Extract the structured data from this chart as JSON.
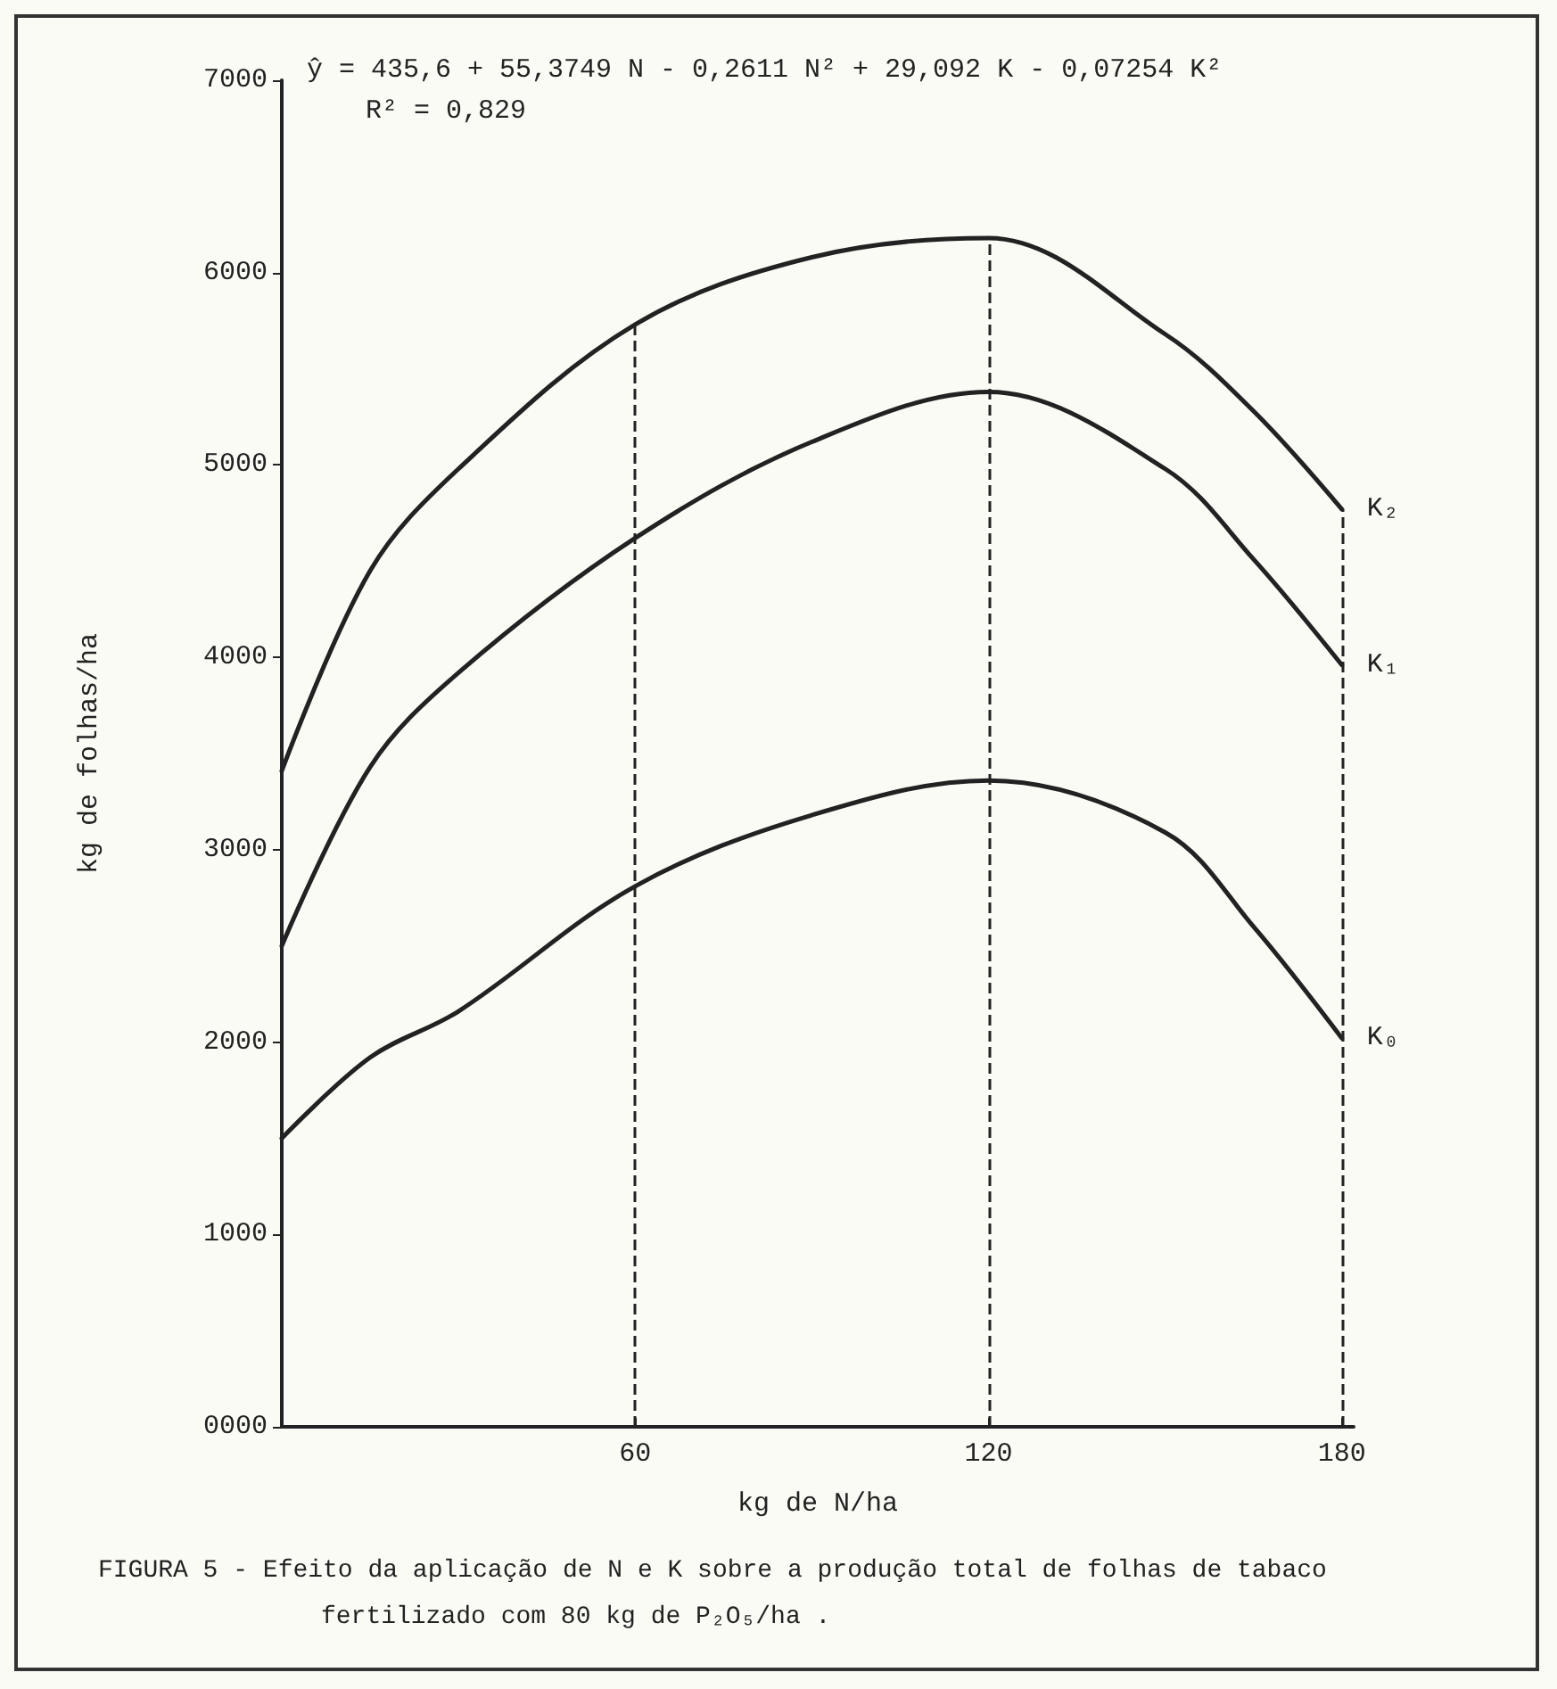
{
  "chart_data": {
    "type": "line",
    "xlabel": "kg de N/ha",
    "ylabel": "kg de folhas/ha",
    "x": [
      0,
      15,
      30,
      60,
      90,
      120,
      150,
      165,
      180
    ],
    "series": [
      {
        "name": "K₂",
        "color": "#222222",
        "values": [
          3410,
          4450,
          4980,
          5730,
          6080,
          6180,
          5680,
          5280,
          4770
        ]
      },
      {
        "name": "K₁",
        "color": "#222222",
        "values": [
          2500,
          3430,
          3920,
          4620,
          5120,
          5380,
          4980,
          4510,
          3960
        ]
      },
      {
        "name": "K₀",
        "color": "#222222",
        "values": [
          1500,
          1920,
          2160,
          2810,
          3180,
          3360,
          3090,
          2600,
          2020
        ]
      }
    ],
    "xlim": [
      0,
      182
    ],
    "xticks": [
      60,
      120,
      180
    ],
    "ylim": [
      0,
      7000
    ],
    "yticks": [
      {
        "value": 0,
        "label": "0000"
      },
      1000,
      2000,
      3000,
      4000,
      5000,
      6000,
      7000
    ],
    "ref_lines": [
      {
        "axis": "x",
        "value": 60,
        "line_style": "dashed"
      },
      {
        "axis": "x",
        "value": 120,
        "line_style": "dashed"
      },
      {
        "axis": "x",
        "value": 180,
        "line_style": "dashed"
      }
    ],
    "annotations": [
      "ŷ = 435,6 + 55,3749 N - 0,2611 N² + 29,092 K - 0,07254 K²",
      "R² = 0,829",
      "FIGURA 5 - Efeito da aplicação de N e K sobre a produção total de folhas de tabaco fertilizado com 80 kg de P₂O₅/ha ."
    ],
    "grid": false,
    "legend": false,
    "marker": "none",
    "line_style": "solid"
  }
}
